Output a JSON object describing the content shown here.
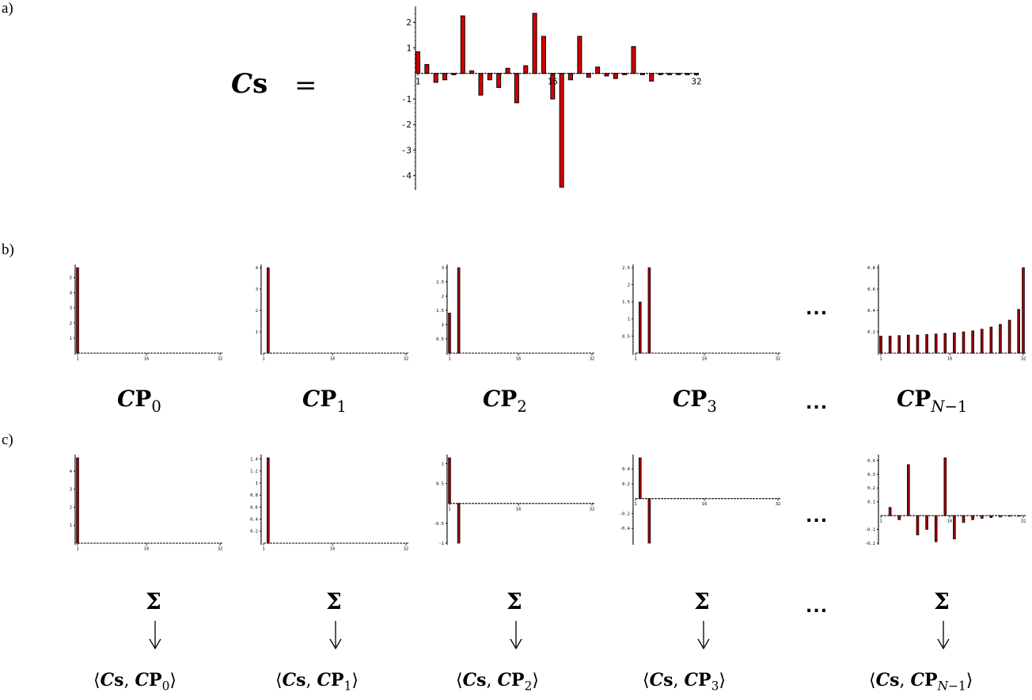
{
  "labels": {
    "a": "a)",
    "b": "b)",
    "c": "c)"
  },
  "equation": {
    "lhs_cal": "C",
    "lhs_bold": "s",
    "equals": "="
  },
  "ellipsis": "...",
  "sigma": "Σ",
  "arrow": "⇓",
  "colors": {
    "main_bar": "#d40000",
    "small_bar": "#8b0000",
    "axis": "#000000"
  },
  "chart_data": [
    {
      "id": "Cs",
      "type": "bar",
      "x": [
        1,
        2,
        3,
        4,
        5,
        6,
        7,
        8,
        9,
        10,
        11,
        12,
        13,
        14,
        15,
        16,
        17,
        18,
        19,
        20,
        21,
        22,
        23,
        24,
        25,
        26,
        27,
        28,
        29,
        30,
        31,
        32
      ],
      "values": [
        0.85,
        0.35,
        -0.35,
        -0.25,
        -0.05,
        2.25,
        0.1,
        -0.85,
        -0.25,
        -0.55,
        0.2,
        -1.15,
        0.3,
        2.35,
        1.45,
        -1.0,
        -4.45,
        -0.25,
        1.45,
        -0.15,
        0.25,
        -0.1,
        -0.2,
        -0.05,
        1.05,
        -0.05,
        -0.3,
        -0.05,
        -0.05,
        -0.05,
        -0.05,
        -0.05
      ],
      "xticks": [
        "1",
        "16",
        "32"
      ],
      "yticks": [
        2,
        1,
        -1,
        -2,
        -3,
        -4
      ],
      "ylim": [
        -4.5,
        2.5
      ]
    },
    {
      "id": "CP0",
      "type": "bar",
      "x": [
        1
      ],
      "values": [
        5.66
      ],
      "xticks": [
        "1",
        "16",
        "32"
      ],
      "yticks": [
        5,
        4,
        3,
        2,
        1
      ],
      "ylim": [
        0,
        5.66
      ]
    },
    {
      "id": "CP1",
      "type": "bar",
      "x": [
        2
      ],
      "values": [
        4.0
      ],
      "xticks": [
        "1",
        "16",
        "32"
      ],
      "yticks": [
        4,
        3,
        2,
        1
      ],
      "ylim": [
        0,
        4.0
      ]
    },
    {
      "id": "CP2",
      "type": "bar",
      "x": [
        1,
        3
      ],
      "values": [
        1.41,
        3.0
      ],
      "xticks": [
        "1",
        "16",
        "32"
      ],
      "yticks": [
        3,
        2.5,
        2,
        1.5,
        1,
        0.5
      ],
      "ylim": [
        0,
        3.0
      ]
    },
    {
      "id": "CP3",
      "type": "bar",
      "x": [
        2,
        4
      ],
      "values": [
        1.5,
        2.5
      ],
      "xticks": [
        "1",
        "16",
        "32"
      ],
      "yticks": [
        2.5,
        2,
        1.5,
        1,
        0.5
      ],
      "ylim": [
        0,
        2.5
      ]
    },
    {
      "id": "CPN1",
      "type": "bar",
      "x": [
        1,
        3,
        5,
        7,
        9,
        11,
        13,
        15,
        17,
        19,
        21,
        23,
        25,
        27,
        29,
        31,
        32
      ],
      "values": [
        0.16,
        0.16,
        0.165,
        0.17,
        0.17,
        0.175,
        0.18,
        0.185,
        0.19,
        0.2,
        0.21,
        0.225,
        0.245,
        0.27,
        0.31,
        0.41,
        0.8
      ],
      "xticks": [
        "1",
        "16",
        "32"
      ],
      "yticks": [
        0.8,
        0.6,
        0.4,
        0.2
      ],
      "ylim": [
        0,
        0.8
      ]
    },
    {
      "id": "CsCP0",
      "type": "bar",
      "x": [
        1
      ],
      "values": [
        4.75
      ],
      "xticks": [
        "1",
        "16",
        "32"
      ],
      "yticks": [
        4,
        3,
        2,
        1
      ],
      "ylim": [
        0,
        4.75
      ]
    },
    {
      "id": "CsCP1",
      "type": "bar",
      "x": [
        2
      ],
      "values": [
        1.42
      ],
      "xticks": [
        "1",
        "16",
        "32"
      ],
      "yticks": [
        1.4,
        1.2,
        1,
        0.8,
        0.6,
        0.4,
        0.2
      ],
      "ylim": [
        0,
        1.42
      ]
    },
    {
      "id": "CsCP2",
      "type": "bar",
      "x": [
        1,
        3
      ],
      "values": [
        1.15,
        -1.0
      ],
      "xticks": [
        "1",
        "16",
        "32"
      ],
      "yticks": [
        1,
        0.5,
        -0.5,
        -1
      ],
      "ylim": [
        -1.0,
        1.15
      ]
    },
    {
      "id": "CsCP3",
      "type": "bar",
      "x": [
        2,
        4
      ],
      "values": [
        0.55,
        -0.6
      ],
      "xticks": [
        "1",
        "16",
        "32"
      ],
      "yticks": [
        0.4,
        0.2,
        -0.2,
        -0.4
      ],
      "ylim": [
        -0.6,
        0.55
      ]
    },
    {
      "id": "CsCPN1",
      "type": "bar",
      "x": [
        3,
        5,
        7,
        9,
        11,
        13,
        15,
        17,
        19,
        21,
        23,
        25,
        27,
        29,
        31
      ],
      "values": [
        0.06,
        -0.03,
        0.37,
        -0.14,
        -0.1,
        -0.19,
        0.42,
        -0.17,
        -0.05,
        -0.03,
        -0.02,
        -0.015,
        -0.01,
        -0.005,
        -0.005
      ],
      "xticks": [
        "1",
        "16",
        "32"
      ],
      "yticks": [
        0.4,
        0.3,
        0.2,
        0.1,
        -0.1,
        -0.2
      ],
      "ylim": [
        -0.2,
        0.42
      ]
    }
  ]
}
